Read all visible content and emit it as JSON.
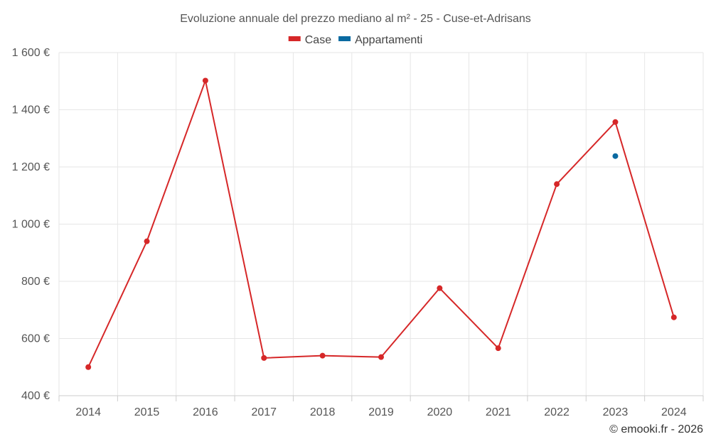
{
  "chart_data": {
    "type": "line",
    "title": "Evoluzione annuale del prezzo mediano al m² - 25 - Cuse-et-Adrisans",
    "categories": [
      "2014",
      "2015",
      "2016",
      "2017",
      "2018",
      "2019",
      "2020",
      "2021",
      "2022",
      "2023",
      "2024"
    ],
    "series": [
      {
        "name": "Case",
        "color": "#d62728",
        "values": [
          500,
          940,
          1502,
          532,
          540,
          535,
          776,
          566,
          1140,
          1357,
          674
        ]
      },
      {
        "name": "Appartamenti",
        "color": "#0a6aa1",
        "values": [
          null,
          null,
          null,
          null,
          null,
          null,
          null,
          null,
          null,
          1238,
          null
        ]
      }
    ],
    "ylim": [
      400,
      1600
    ],
    "yticks": [
      400,
      600,
      800,
      1000,
      1200,
      1400,
      1600
    ],
    "ytick_labels": [
      "400 €",
      "600 €",
      "800 €",
      "1 000 €",
      "1 200 €",
      "1 400 €",
      "1 600 €"
    ],
    "xlabel": "",
    "ylabel": "",
    "grid": true,
    "legend_position": "top-center"
  },
  "credit": "© emooki.fr - 2026"
}
